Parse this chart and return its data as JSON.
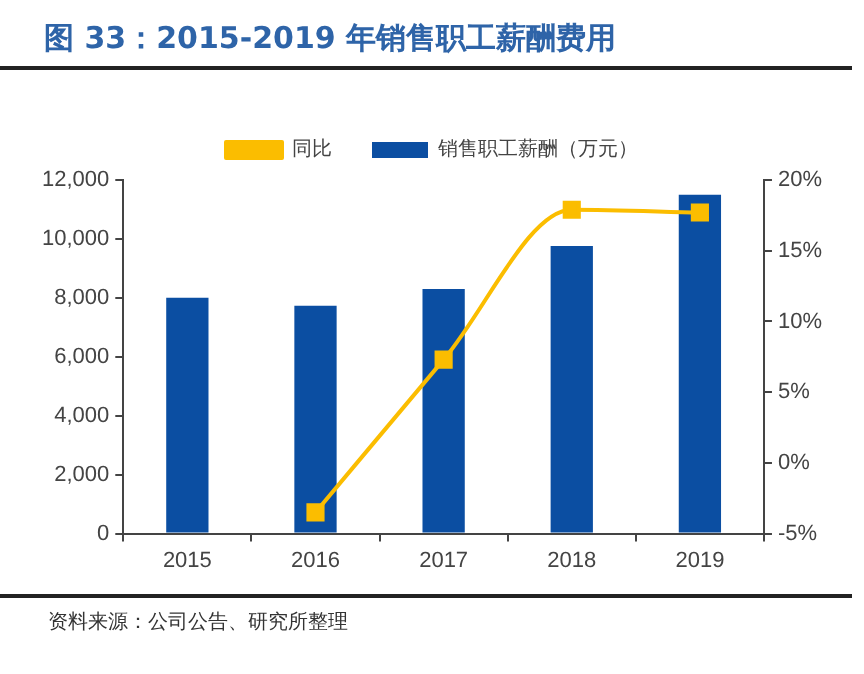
{
  "chart_data": {
    "type": "bar",
    "title": "图 33：2015-2019 年销售职工薪酬费用",
    "categories": [
      "2015",
      "2016",
      "2017",
      "2018",
      "2019"
    ],
    "series": [
      {
        "name": "销售职工薪酬（万元）",
        "color": "#0b4ea2",
        "values": [
          8000,
          7730,
          8300,
          9760,
          11500
        ]
      },
      {
        "name": "同比",
        "type": "line",
        "axis": "y2",
        "color": "#fbbd00",
        "values": [
          null,
          -3.5,
          7.3,
          17.9,
          17.7
        ]
      }
    ],
    "ylim": [
      0,
      12000
    ],
    "yticks": [
      {
        "value": 0,
        "label": "0"
      },
      {
        "value": 2000,
        "label": "2,000"
      },
      {
        "value": 4000,
        "label": "4,000"
      },
      {
        "value": 6000,
        "label": "6,000"
      },
      {
        "value": 8000,
        "label": "8,000"
      },
      {
        "value": 10000,
        "label": "10,000"
      },
      {
        "value": 12000,
        "label": "12,000"
      }
    ],
    "y2lim": [
      -5,
      20
    ],
    "y2ticks": [
      {
        "value": -5,
        "label": "-5%"
      },
      {
        "value": 0,
        "label": "0%"
      },
      {
        "value": 5,
        "label": "5%"
      },
      {
        "value": 10,
        "label": "10%"
      },
      {
        "value": 15,
        "label": "15%"
      },
      {
        "value": 20,
        "label": "20%"
      }
    ],
    "grid": false,
    "legend": "top",
    "marker": "square",
    "annotations": [
      "资料来源：公司公告、研究所整理"
    ]
  }
}
